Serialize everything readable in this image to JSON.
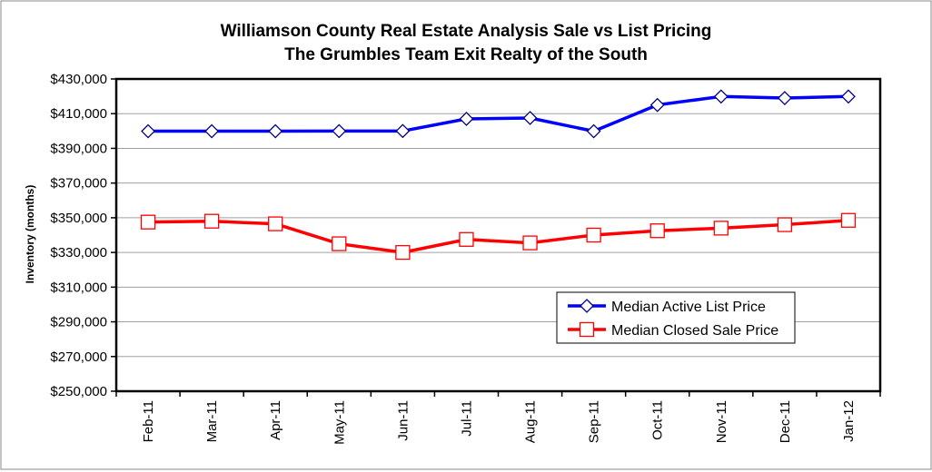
{
  "chart_data": {
    "type": "line",
    "title": "Williamson County Real Estate Analysis Sale vs List Pricing",
    "subtitle": "The Grumbles Team Exit Realty of the South",
    "ylabel": "Inventory (months)",
    "xlabel": "",
    "categories": [
      "Feb-11",
      "Mar-11",
      "Apr-11",
      "May-11",
      "Jun-11",
      "Jul-11",
      "Aug-11",
      "Sep-11",
      "Oct-11",
      "Nov-11",
      "Dec-11",
      "Jan-12"
    ],
    "ylim": [
      250000,
      430000
    ],
    "yticks": [
      250000,
      270000,
      290000,
      310000,
      330000,
      350000,
      370000,
      390000,
      410000,
      430000
    ],
    "ytick_labels": [
      "$250,000",
      "$270,000",
      "$290,000",
      "$310,000",
      "$330,000",
      "$350,000",
      "$370,000",
      "$390,000",
      "$410,000",
      "$430,000"
    ],
    "grid": true,
    "legend_position": "lower-right",
    "series": [
      {
        "name": "Median Active List Price",
        "color": "#0000ff",
        "marker": "diamond",
        "values": [
          399900,
          399900,
          399900,
          399950,
          400000,
          407000,
          407500,
          399900,
          415000,
          419900,
          419000,
          419900
        ]
      },
      {
        "name": "Median Closed Sale Price",
        "color": "#ff0000",
        "marker": "square",
        "values": [
          347500,
          348000,
          346500,
          335000,
          330000,
          337500,
          335500,
          340000,
          342500,
          344000,
          346000,
          348500
        ]
      }
    ]
  }
}
